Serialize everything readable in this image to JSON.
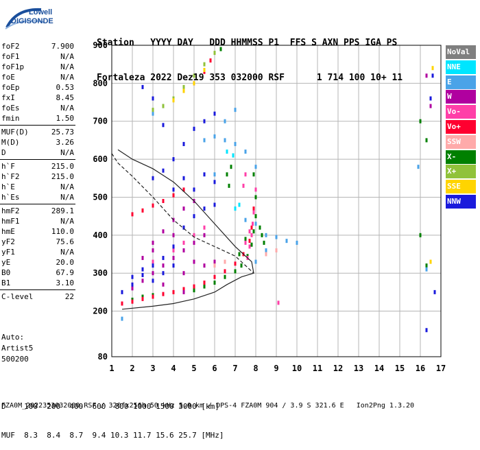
{
  "logo": {
    "line1": "Lowell",
    "line2": "DIGISONDE"
  },
  "header": {
    "line1": "Station   YYYY DAY   DDD HHMMSS P1  FFS S AXN PPS IGA PS",
    "line2": "Fortaleza 2022 Dez19 353 032000 RSF      1 714 100 10+ 11"
  },
  "params_groups": [
    [
      [
        "foF2",
        "7.900"
      ],
      [
        "foF1",
        "N/A"
      ],
      [
        "foF1p",
        "N/A"
      ],
      [
        "foE",
        "N/A"
      ],
      [
        "foEp",
        "0.53"
      ],
      [
        "fxI",
        "8.45"
      ],
      [
        "foEs",
        "N/A"
      ],
      [
        "fmin",
        "1.50"
      ]
    ],
    [
      [
        "MUF(D)",
        "25.73"
      ],
      [
        "M(D)",
        "3.26"
      ],
      [
        "D",
        "N/A"
      ]
    ],
    [
      [
        "h`F",
        "215.0"
      ],
      [
        "h`F2",
        "215.0"
      ],
      [
        "h`E",
        "N/A"
      ],
      [
        "h`Es",
        "N/A"
      ]
    ],
    [
      [
        "hmF2",
        "289.1"
      ],
      [
        "hmF1",
        "N/A"
      ],
      [
        "hmE",
        "110.0"
      ],
      [
        "yF2",
        "75.6"
      ],
      [
        "yF1",
        "N/A"
      ],
      [
        "yE",
        "20.0"
      ],
      [
        "B0",
        "67.9"
      ],
      [
        "B1",
        "3.10"
      ]
    ],
    [
      [
        "C-level",
        "22"
      ]
    ]
  ],
  "auto": {
    "line1": "Auto:",
    "line2": "Artist5",
    "line3": "500200"
  },
  "legend": [
    {
      "label": "NoVal",
      "color": "#7f7f7f"
    },
    {
      "label": "NNE",
      "color": "#00e5ff"
    },
    {
      "label": "E",
      "color": "#4aa3e8"
    },
    {
      "label": "W",
      "color": "#b0009f"
    },
    {
      "label": "Vo-",
      "color": "#ff3fa8"
    },
    {
      "label": "Vo+",
      "color": "#ff0030"
    },
    {
      "label": "SSW",
      "color": "#ffaaaa"
    },
    {
      "label": "X-",
      "color": "#008000"
    },
    {
      "label": "X+",
      "color": "#90c23a"
    },
    {
      "label": "SSE",
      "color": "#ffd400"
    },
    {
      "label": "NNW",
      "color": "#1a1adc"
    }
  ],
  "muf_table": {
    "d_line": "D    100  200  400  600  800 1000 1500 3000 [km]",
    "muf_line": "MUF  8.3  8.4  8.7  9.4 10.3 11.7 15.6 25.7 [MHz]"
  },
  "footer": "FZA0M_2022353032000.RSF / 320fx256h 50 kHz 5.0 km / DPS-4 FZA0M 904 / 3.9 S 321.6 E   Ion2Png 1.3.20",
  "chart_data": {
    "type": "scatter",
    "x_ticks": [
      1,
      2,
      3,
      4,
      5,
      6,
      7,
      8,
      9,
      10,
      11,
      12,
      13,
      14,
      15,
      16,
      17
    ],
    "y_ticks": [
      80,
      200,
      300,
      400,
      500,
      600,
      700,
      800,
      900
    ],
    "xlim": [
      1,
      17
    ],
    "ylim": [
      80,
      900
    ],
    "grid": true,
    "series": [
      {
        "name": "X-",
        "color": "#008000",
        "points": [
          [
            5.0,
            255
          ],
          [
            5.5,
            265
          ],
          [
            6.0,
            275
          ],
          [
            6.5,
            290
          ],
          [
            7.0,
            305
          ],
          [
            7.3,
            320
          ],
          [
            7.6,
            345
          ],
          [
            7.8,
            375
          ],
          [
            7.9,
            410
          ],
          [
            8.0,
            450
          ],
          [
            8.0,
            500
          ],
          [
            7.9,
            560
          ],
          [
            8.2,
            420
          ],
          [
            8.4,
            380
          ],
          [
            8.3,
            400
          ],
          [
            6.7,
            530
          ],
          [
            6.8,
            580
          ],
          [
            6.9,
            610
          ],
          [
            6.6,
            560
          ],
          [
            7.5,
            390
          ],
          [
            7.2,
            350
          ],
          [
            2.0,
            230
          ],
          [
            2.5,
            238
          ],
          [
            3.0,
            242
          ],
          [
            6.3,
            890
          ],
          [
            16.0,
            700
          ],
          [
            16.0,
            400
          ],
          [
            16.3,
            650
          ],
          [
            16.3,
            320
          ]
        ]
      },
      {
        "name": "Vo+",
        "color": "#ff0030",
        "points": [
          [
            1.5,
            220
          ],
          [
            2.0,
            225
          ],
          [
            2.5,
            232
          ],
          [
            3.0,
            238
          ],
          [
            3.5,
            245
          ],
          [
            4.0,
            250
          ],
          [
            4.5,
            258
          ],
          [
            5.0,
            265
          ],
          [
            5.5,
            275
          ],
          [
            6.0,
            290
          ],
          [
            6.5,
            305
          ],
          [
            7.0,
            325
          ],
          [
            7.4,
            350
          ],
          [
            7.7,
            385
          ],
          [
            7.8,
            420
          ],
          [
            7.9,
            470
          ],
          [
            2.0,
            455
          ],
          [
            2.5,
            465
          ],
          [
            3.0,
            478
          ],
          [
            3.5,
            490
          ],
          [
            4.0,
            505
          ],
          [
            4.5,
            520
          ],
          [
            4.5,
            780
          ],
          [
            5.0,
            800
          ],
          [
            5.5,
            830
          ],
          [
            5.8,
            860
          ]
        ]
      },
      {
        "name": "Vo-",
        "color": "#ff3fa8",
        "points": [
          [
            7.6,
            340
          ],
          [
            7.7,
            370
          ],
          [
            7.8,
            400
          ],
          [
            7.85,
            430
          ],
          [
            7.9,
            460
          ],
          [
            8.0,
            520
          ],
          [
            7.5,
            380
          ],
          [
            7.7,
            410
          ],
          [
            3.0,
            330
          ],
          [
            3.5,
            340
          ],
          [
            4.0,
            360
          ],
          [
            4.5,
            380
          ],
          [
            5.0,
            400
          ],
          [
            5.5,
            420
          ],
          [
            9.1,
            222
          ],
          [
            7.4,
            530
          ],
          [
            7.5,
            560
          ]
        ]
      },
      {
        "name": "W",
        "color": "#b0009f",
        "points": [
          [
            2.0,
            260
          ],
          [
            2.5,
            280
          ],
          [
            3.0,
            300
          ],
          [
            3.5,
            320
          ],
          [
            4.0,
            340
          ],
          [
            4.5,
            360
          ],
          [
            5.0,
            380
          ],
          [
            5.5,
            400
          ],
          [
            3.0,
            380
          ],
          [
            3.5,
            410
          ],
          [
            4.0,
            440
          ],
          [
            4.5,
            470
          ],
          [
            5.0,
            490
          ],
          [
            2.5,
            340
          ],
          [
            3.0,
            360
          ],
          [
            4.0,
            400
          ],
          [
            5.0,
            330
          ],
          [
            5.5,
            320
          ],
          [
            6.0,
            330
          ],
          [
            4.5,
            300
          ],
          [
            3.5,
            270
          ],
          [
            4.5,
            250
          ],
          [
            16.3,
            820
          ],
          [
            16.5,
            740
          ]
        ]
      },
      {
        "name": "E",
        "color": "#4aa3e8",
        "points": [
          [
            6.0,
            660
          ],
          [
            6.5,
            700
          ],
          [
            7.0,
            730
          ],
          [
            6.5,
            650
          ],
          [
            7.0,
            640
          ],
          [
            7.5,
            620
          ],
          [
            8.0,
            580
          ],
          [
            6.0,
            560
          ],
          [
            7.0,
            470
          ],
          [
            7.5,
            440
          ],
          [
            8.0,
            430
          ],
          [
            8.5,
            400
          ],
          [
            9.0,
            395
          ],
          [
            9.5,
            385
          ],
          [
            10.0,
            380
          ],
          [
            8.0,
            330
          ],
          [
            8.5,
            360
          ],
          [
            4.0,
            600
          ],
          [
            4.5,
            640
          ],
          [
            5.0,
            680
          ],
          [
            5.5,
            650
          ],
          [
            3.0,
            720
          ],
          [
            3.5,
            740
          ],
          [
            15.9,
            580
          ],
          [
            16.3,
            310
          ],
          [
            1.5,
            180
          ]
        ]
      },
      {
        "name": "NNE",
        "color": "#00e5ff",
        "points": [
          [
            6.6,
            620
          ],
          [
            6.9,
            610
          ],
          [
            7.0,
            470
          ],
          [
            7.2,
            480
          ]
        ]
      },
      {
        "name": "NNW",
        "color": "#1a1adc",
        "points": [
          [
            1.5,
            250
          ],
          [
            2.0,
            270
          ],
          [
            2.5,
            295
          ],
          [
            3.0,
            320
          ],
          [
            3.5,
            340
          ],
          [
            4.0,
            370
          ],
          [
            4.5,
            420
          ],
          [
            5.0,
            450
          ],
          [
            5.5,
            470
          ],
          [
            6.0,
            480
          ],
          [
            3.0,
            550
          ],
          [
            3.5,
            570
          ],
          [
            4.0,
            600
          ],
          [
            4.5,
            640
          ],
          [
            5.0,
            680
          ],
          [
            5.5,
            700
          ],
          [
            6.0,
            720
          ],
          [
            3.5,
            690
          ],
          [
            2.5,
            790
          ],
          [
            3.0,
            760
          ],
          [
            4.0,
            520
          ],
          [
            4.5,
            550
          ],
          [
            5.0,
            520
          ],
          [
            5.5,
            560
          ],
          [
            6.0,
            540
          ],
          [
            2.0,
            290
          ],
          [
            2.5,
            310
          ],
          [
            3.0,
            280
          ],
          [
            3.5,
            300
          ],
          [
            4.0,
            320
          ],
          [
            16.3,
            150
          ],
          [
            16.7,
            250
          ],
          [
            16.5,
            760
          ],
          [
            16.6,
            820
          ]
        ]
      },
      {
        "name": "X+",
        "color": "#90c23a",
        "points": [
          [
            4.5,
            790
          ],
          [
            5.0,
            820
          ],
          [
            5.5,
            850
          ],
          [
            6.0,
            880
          ],
          [
            4.0,
            760
          ],
          [
            3.5,
            740
          ],
          [
            3.0,
            730
          ]
        ]
      },
      {
        "name": "SSE",
        "color": "#ffd400",
        "points": [
          [
            4.0,
            755
          ],
          [
            4.5,
            780
          ],
          [
            5.0,
            800
          ],
          [
            5.5,
            835
          ],
          [
            16.5,
            330
          ],
          [
            16.6,
            840
          ]
        ]
      },
      {
        "name": "SSW",
        "color": "#ffaaaa",
        "points": [
          [
            8.5,
            350
          ],
          [
            9.0,
            360
          ],
          [
            6.0,
            320
          ],
          [
            6.5,
            330
          ]
        ]
      }
    ],
    "profile_curve": [
      [
        1.5,
        205
      ],
      [
        3.0,
        213
      ],
      [
        4.0,
        220
      ],
      [
        5.0,
        232
      ],
      [
        6.0,
        250
      ],
      [
        6.6,
        270
      ],
      [
        7.3,
        290
      ],
      [
        7.9,
        300
      ],
      [
        7.8,
        330
      ],
      [
        7.0,
        370
      ],
      [
        6.0,
        430
      ],
      [
        5.0,
        490
      ],
      [
        4.0,
        540
      ],
      [
        3.0,
        575
      ],
      [
        2.0,
        600
      ],
      [
        1.3,
        625
      ]
    ],
    "dashed_curve": [
      [
        1.0,
        615
      ],
      [
        1.3,
        590
      ],
      [
        2.0,
        555
      ],
      [
        3.0,
        500
      ],
      [
        4.0,
        440
      ],
      [
        5.0,
        395
      ],
      [
        6.0,
        370
      ],
      [
        7.0,
        345
      ],
      [
        7.5,
        320
      ],
      [
        7.9,
        300
      ]
    ]
  }
}
